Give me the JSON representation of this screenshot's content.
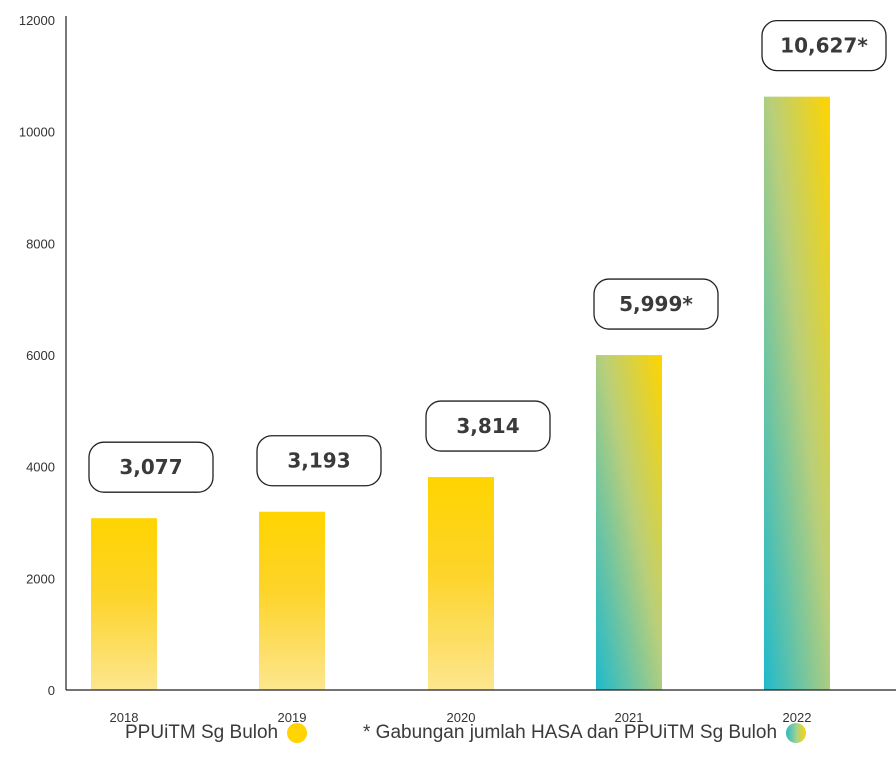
{
  "chart_data": {
    "type": "bar",
    "categories": [
      "2018",
      "2019",
      "2020",
      "2021",
      "2022"
    ],
    "values": [
      3077,
      3193,
      3814,
      5999,
      10627
    ],
    "value_labels": [
      "3,077",
      "3,193",
      "3,814",
      "5,999*",
      "10,627*"
    ],
    "bar_style": [
      "yellow",
      "yellow",
      "yellow",
      "gradient",
      "gradient"
    ],
    "yticks": [
      "0",
      "2000",
      "4000",
      "6000",
      "8000",
      "10000",
      "12000"
    ],
    "ylim": [
      0,
      12000
    ],
    "title": "",
    "xlabel": "",
    "ylabel": "",
    "grid": false,
    "legend_placement": "bottom"
  },
  "legend": {
    "yellow_label": "PPUiTM Sg Buloh",
    "gradient_label": "* Gabungan jumlah HASA dan PPUiTM Sg Buloh"
  },
  "colors": {
    "yellow_top": "#ffd400",
    "yellow_bottom": "#fde68f",
    "teal": "#1fb9cc",
    "axis": "#222222"
  }
}
